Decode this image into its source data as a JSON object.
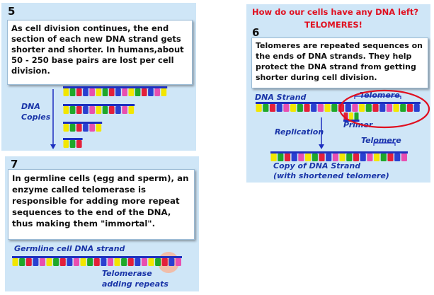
{
  "panel5": {
    "number": "5",
    "text": "As cell division continues, the end section of each new DNA strand gets shorter and shorter. In humans,about 50 - 250 base pairs are lost per cell division.",
    "dna_label_line1": "DNA",
    "dna_label_line2": "Copies"
  },
  "panel6": {
    "question": "How do our  cells have any DNA left?",
    "answer": "TELOMERES!",
    "number": "6",
    "text": "Telomeres are repeated sequences on the ends of DNA strands. They help protect the DNA strand from getting shorter during cell division.",
    "dna_strand_label": "DNA Strand",
    "telomere_label_top": "Telomere",
    "primer_label": "Primer",
    "replication_label": "Replication",
    "telomere_label_bottom": "Telomere",
    "copy_label_line1": "Copy of DNA Strand",
    "copy_label_line2": "(with shortened telomere)"
  },
  "panel7": {
    "number": "7",
    "text": "In germline cells (egg and sperm), an enzyme called telomerase is responsible for adding more repeat sequences to the end of the DNA, thus making them \"immortal\".",
    "germline_label": "Germline cell DNA strand",
    "telomerase_line1": "Telomerase",
    "telomerase_line2": "adding repeats"
  },
  "colors": {
    "panel_bg": "#cfe6f7",
    "label_blue": "#1a35a8",
    "highlight_red": "#e01020",
    "base_yellow": "#f2e600",
    "base_green": "#1fa82a",
    "base_red": "#e3203a",
    "base_blue": "#2a40d0",
    "base_pink": "#e84fb0",
    "backbone": "#1d2fbf"
  }
}
